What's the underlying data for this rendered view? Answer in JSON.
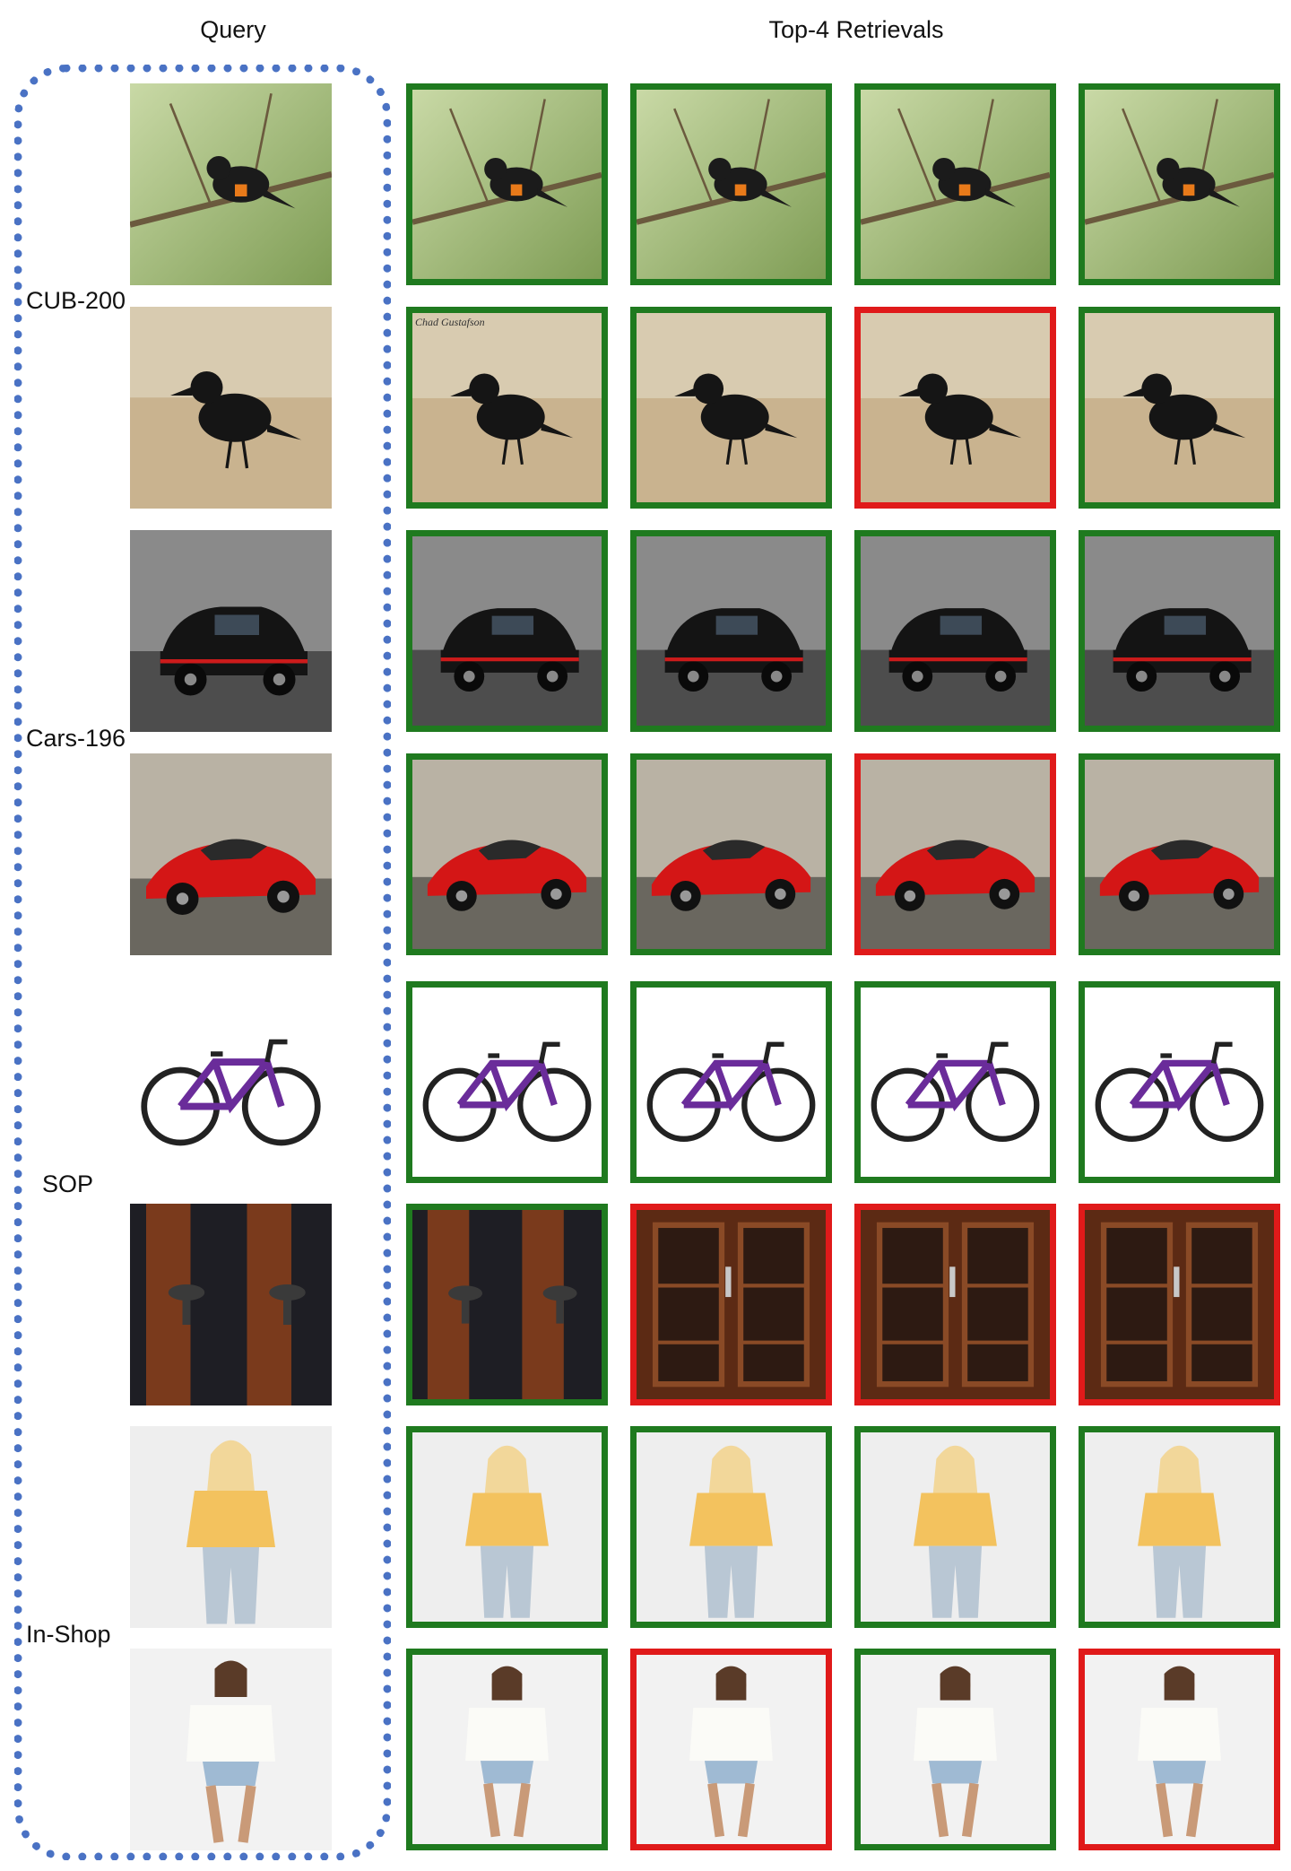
{
  "headers": {
    "query": "Query",
    "retrievals": "Top-4 Retrievals"
  },
  "colors": {
    "correct": "#1f7a1f",
    "incorrect": "#e01a1a",
    "query_frame": "#4a72c4"
  },
  "datasets": [
    "CUB-200",
    "Cars-196",
    "SOP",
    "In-Shop"
  ],
  "rows": [
    {
      "dataset": "CUB-200",
      "query": "bird-redstart",
      "results": [
        {
          "subject": "bird-redstart",
          "correct": true
        },
        {
          "subject": "bird-redstart",
          "correct": true
        },
        {
          "subject": "bird-redstart",
          "correct": true
        },
        {
          "subject": "bird-redstart",
          "correct": true
        }
      ]
    },
    {
      "dataset": "CUB-200",
      "query": "bird-crow",
      "results": [
        {
          "subject": "bird-crow",
          "correct": true,
          "caption": "Chad Gustafson"
        },
        {
          "subject": "bird-crow",
          "correct": true
        },
        {
          "subject": "bird-crow",
          "correct": false
        },
        {
          "subject": "bird-crow",
          "correct": true
        }
      ]
    },
    {
      "dataset": "Cars-196",
      "query": "car-black",
      "results": [
        {
          "subject": "car-black",
          "correct": true
        },
        {
          "subject": "car-black",
          "correct": true
        },
        {
          "subject": "car-black",
          "correct": true
        },
        {
          "subject": "car-black",
          "correct": true
        }
      ]
    },
    {
      "dataset": "Cars-196",
      "query": "car-red",
      "results": [
        {
          "subject": "car-red",
          "correct": true
        },
        {
          "subject": "car-red",
          "correct": true
        },
        {
          "subject": "car-red",
          "correct": false
        },
        {
          "subject": "car-red",
          "correct": true
        }
      ]
    },
    {
      "dataset": "SOP",
      "query": "bicycle-purple",
      "results": [
        {
          "subject": "bicycle-purple",
          "correct": true
        },
        {
          "subject": "bicycle-purple",
          "correct": true
        },
        {
          "subject": "bicycle-purple",
          "correct": true
        },
        {
          "subject": "bicycle-purple",
          "correct": true
        }
      ]
    },
    {
      "dataset": "SOP",
      "query": "cabinet-knobs",
      "results": [
        {
          "subject": "cabinet-knobs",
          "correct": true
        },
        {
          "subject": "cabinet-wood",
          "correct": false
        },
        {
          "subject": "cabinet-wood",
          "correct": false
        },
        {
          "subject": "cabinet-wood",
          "correct": false
        }
      ]
    },
    {
      "dataset": "In-Shop",
      "query": "model-yellow-top",
      "results": [
        {
          "subject": "model-yellow-top",
          "correct": true
        },
        {
          "subject": "model-yellow-top",
          "correct": true
        },
        {
          "subject": "model-yellow-top",
          "correct": true
        },
        {
          "subject": "model-yellow-top",
          "correct": true
        }
      ]
    },
    {
      "dataset": "In-Shop",
      "query": "model-white-top",
      "results": [
        {
          "subject": "model-white-top",
          "correct": true
        },
        {
          "subject": "model-white-top",
          "correct": false
        },
        {
          "subject": "model-white-top",
          "correct": true
        },
        {
          "subject": "model-white-top",
          "correct": false
        }
      ]
    }
  ]
}
